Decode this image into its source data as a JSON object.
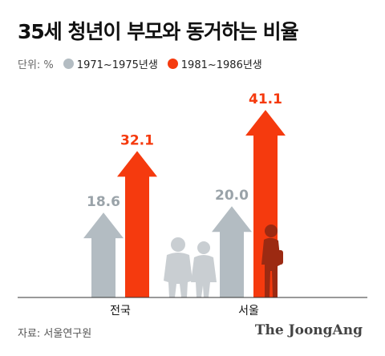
{
  "title": "35세 청년이 부모와 동거하는 비율",
  "source": "자료: 서울연구원",
  "brand": "The JoongAng",
  "colors": {
    "series1": "#b3bcc2",
    "series2": "#f53a0e",
    "silhouette": "#c9ced2",
    "silhouette_dark": "#9c2a12",
    "axis": "#333333"
  },
  "chart_data": {
    "type": "bar",
    "unit_label": "단위: %",
    "categories": [
      "전국",
      "서울"
    ],
    "series": [
      {
        "name": "1971~1975년생",
        "values": [
          18.6,
          20.0
        ]
      },
      {
        "name": "1981~1986년생",
        "values": [
          32.1,
          41.1
        ]
      }
    ],
    "ylim": [
      0,
      45
    ],
    "legend": "top-left",
    "grid": false
  }
}
